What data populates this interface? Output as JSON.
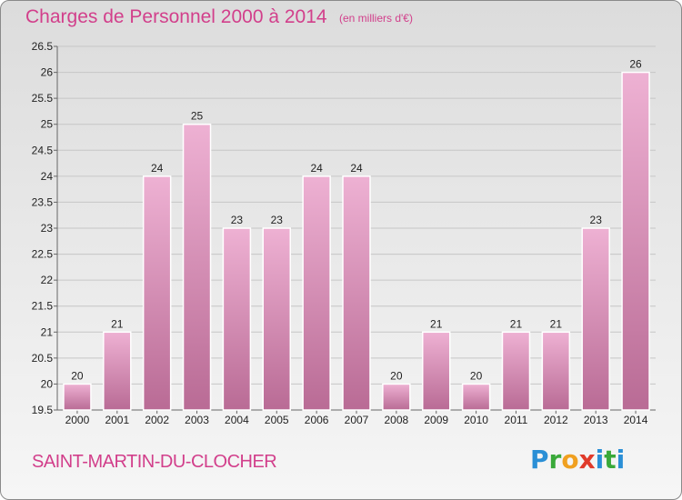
{
  "header": {
    "title": "Charges de Personnel 2000 à 2014",
    "unit": "(en milliers d'€)"
  },
  "footer": {
    "place": "SAINT-MARTIN-DU-CLOCHER",
    "logo_letters": [
      "P",
      "r",
      "o",
      "x",
      "i",
      "t",
      "i"
    ]
  },
  "colors": {
    "bar_light": "#eeb1d3",
    "bar_dark": "#b96b95",
    "accent": "#d23f8b"
  },
  "chart_data": {
    "type": "bar",
    "categories": [
      "2000",
      "2001",
      "2002",
      "2003",
      "2004",
      "2005",
      "2006",
      "2007",
      "2008",
      "2009",
      "2010",
      "2011",
      "2012",
      "2013",
      "2014"
    ],
    "values": [
      20,
      21,
      24,
      25,
      23,
      23,
      24,
      24,
      20,
      21,
      20,
      21,
      21,
      23,
      26
    ],
    "ylim": [
      19.5,
      26.5
    ],
    "yticks": [
      "19.5",
      "20",
      "20.5",
      "21",
      "21.5",
      "22",
      "22.5",
      "23",
      "23.5",
      "24",
      "24.5",
      "25",
      "25.5",
      "26",
      "26.5"
    ],
    "grid": true
  }
}
